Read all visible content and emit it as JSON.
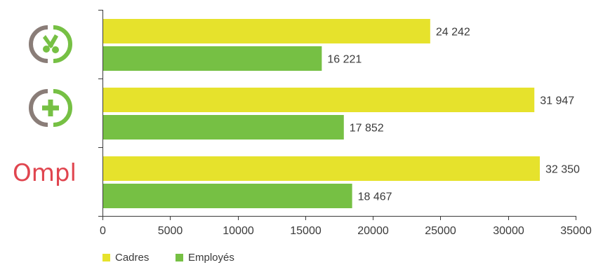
{
  "chart_data": {
    "type": "bar",
    "orientation": "horizontal",
    "categories": [
      "scissors-logo",
      "plus-logo",
      "Ompl"
    ],
    "series": [
      {
        "name": "Cadres",
        "color": "#e6e22c",
        "values": [
          24242,
          31947,
          32350
        ],
        "labels": [
          "24 242",
          "31 947",
          "32 350"
        ]
      },
      {
        "name": "Employés",
        "color": "#76c044",
        "values": [
          16221,
          17852,
          18467
        ],
        "labels": [
          "16 221",
          "17 852",
          "18 467"
        ]
      }
    ],
    "xlim": [
      0,
      35000
    ],
    "xticks": [
      0,
      5000,
      10000,
      15000,
      20000,
      25000,
      30000,
      35000
    ],
    "title": "",
    "xlabel": "",
    "ylabel": "",
    "grid": false,
    "legend_position": "bottom-left"
  },
  "logos": {
    "scissors": {
      "icon": "scissors-icon",
      "ring_left": "#8a7d78",
      "ring_right": "#76c044"
    },
    "plus": {
      "icon": "plus-icon",
      "ring_left": "#8a7d78",
      "ring_right": "#76c044"
    },
    "ompl": {
      "text": "Ompl",
      "color": "#e0454f"
    }
  }
}
